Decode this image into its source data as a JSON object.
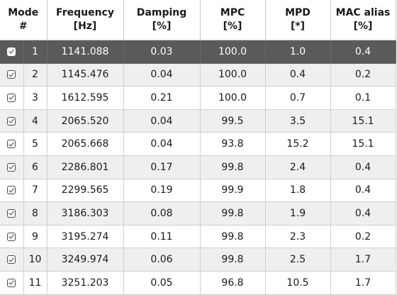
{
  "columns": [
    {
      "line1": "Mode",
      "line2": "#"
    },
    {
      "line1": "Frequency",
      "line2": "[Hz]"
    },
    {
      "line1": "Damping",
      "line2": "[%]"
    },
    {
      "line1": "MPC",
      "line2": "[%]"
    },
    {
      "line1": "MPD",
      "line2": "[*]"
    },
    {
      "line1": "MAC alias",
      "line2": "[%]"
    }
  ],
  "rows": [
    {
      "mode": "1",
      "frequency": "1141.088",
      "damping": "0.03",
      "mpc": "100.0",
      "mpd": "1.0",
      "mac_alias": "0.4",
      "checked": true,
      "selected": true
    },
    {
      "mode": "2",
      "frequency": "1145.476",
      "damping": "0.04",
      "mpc": "100.0",
      "mpd": "0.4",
      "mac_alias": "0.2",
      "checked": true,
      "selected": false
    },
    {
      "mode": "3",
      "frequency": "1612.595",
      "damping": "0.21",
      "mpc": "100.0",
      "mpd": "0.7",
      "mac_alias": "0.1",
      "checked": true,
      "selected": false
    },
    {
      "mode": "4",
      "frequency": "2065.520",
      "damping": "0.04",
      "mpc": "99.5",
      "mpd": "3.5",
      "mac_alias": "15.1",
      "checked": true,
      "selected": false
    },
    {
      "mode": "5",
      "frequency": "2065.668",
      "damping": "0.04",
      "mpc": "93.8",
      "mpd": "15.2",
      "mac_alias": "15.1",
      "checked": true,
      "selected": false
    },
    {
      "mode": "6",
      "frequency": "2286.801",
      "damping": "0.17",
      "mpc": "99.8",
      "mpd": "2.4",
      "mac_alias": "0.4",
      "checked": true,
      "selected": false
    },
    {
      "mode": "7",
      "frequency": "2299.565",
      "damping": "0.19",
      "mpc": "99.9",
      "mpd": "1.8",
      "mac_alias": "0.4",
      "checked": true,
      "selected": false
    },
    {
      "mode": "8",
      "frequency": "3186.303",
      "damping": "0.08",
      "mpc": "99.8",
      "mpd": "1.9",
      "mac_alias": "0.4",
      "checked": true,
      "selected": false
    },
    {
      "mode": "9",
      "frequency": "3195.274",
      "damping": "0.11",
      "mpc": "99.8",
      "mpd": "2.3",
      "mac_alias": "0.2",
      "checked": true,
      "selected": false
    },
    {
      "mode": "10",
      "frequency": "3249.974",
      "damping": "0.06",
      "mpc": "99.8",
      "mpd": "2.5",
      "mac_alias": "1.7",
      "checked": true,
      "selected": false
    },
    {
      "mode": "11",
      "frequency": "3251.203",
      "damping": "0.05",
      "mpc": "96.8",
      "mpd": "10.5",
      "mac_alias": "1.7",
      "checked": true,
      "selected": false
    }
  ],
  "colors": {
    "selected_row": "#5a5a5a",
    "alt_row": "#efefef",
    "grid": "#cfcfcf"
  }
}
